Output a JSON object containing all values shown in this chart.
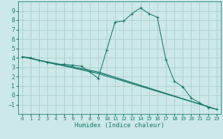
{
  "title": "",
  "xlabel": "Humidex (Indice chaleur)",
  "xlim": [
    -0.5,
    23.5
  ],
  "ylim": [
    -2,
    10
  ],
  "xticks": [
    0,
    1,
    2,
    3,
    4,
    5,
    6,
    7,
    8,
    9,
    10,
    11,
    12,
    13,
    14,
    15,
    16,
    17,
    18,
    19,
    20,
    21,
    22,
    23
  ],
  "yticks": [
    -1,
    0,
    1,
    2,
    3,
    4,
    5,
    6,
    7,
    8,
    9
  ],
  "bg_color": "#cce8e8",
  "grid_color": "#b0d0d0",
  "line_color": "#1a7a6e",
  "lines": [
    {
      "x": [
        0,
        1,
        2,
        3,
        4,
        5,
        6,
        7,
        8,
        9,
        10,
        11,
        12,
        13,
        14,
        15,
        16,
        17,
        18,
        19,
        20,
        21,
        22,
        23
      ],
      "y": [
        4.1,
        4.0,
        3.7,
        3.5,
        3.3,
        3.3,
        3.2,
        3.1,
        2.5,
        1.8,
        4.8,
        7.8,
        7.9,
        8.7,
        9.3,
        8.7,
        8.3,
        3.8,
        1.5,
        0.9,
        -0.3,
        -0.8,
        -1.3,
        -1.5
      ],
      "marker": "+"
    },
    {
      "x": [
        0,
        9,
        23
      ],
      "y": [
        4.1,
        2.3,
        -1.5
      ],
      "marker": null
    },
    {
      "x": [
        0,
        9,
        23
      ],
      "y": [
        4.1,
        2.4,
        -1.5
      ],
      "marker": null
    },
    {
      "x": [
        0,
        9,
        23
      ],
      "y": [
        4.1,
        2.5,
        -1.5
      ],
      "marker": null
    }
  ]
}
